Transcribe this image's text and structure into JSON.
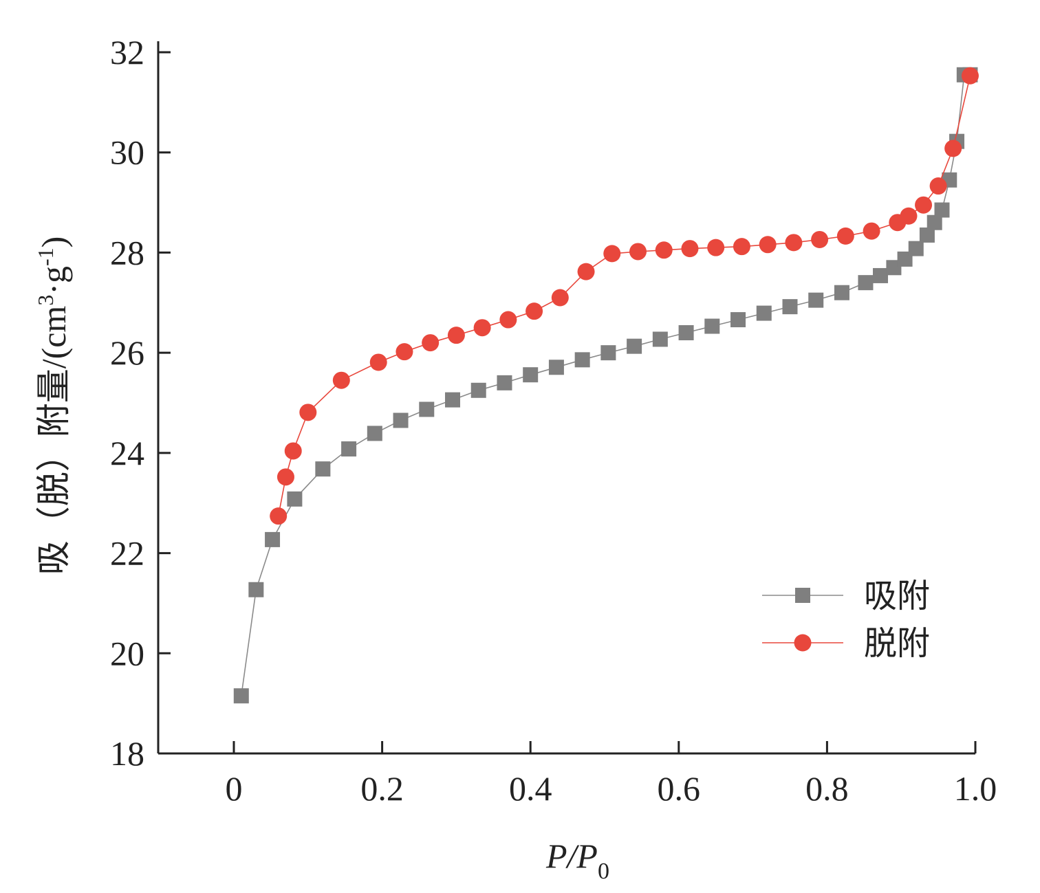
{
  "chart_data": {
    "type": "scatter",
    "title": "",
    "xlabel": {
      "main": "P/P",
      "sub": "0"
    },
    "ylabel": {
      "main": "吸（脱）附量/(cm",
      "sup1": "3",
      "mid": "·g",
      "sup2": "-1",
      "end": ")"
    },
    "xlim": [
      -0.1,
      1.0
    ],
    "ylim": [
      18,
      32
    ],
    "xticks": [
      0,
      0.2,
      0.4,
      0.6,
      0.8,
      1.0
    ],
    "xtick_labels": [
      "0",
      "0.2",
      "0.4",
      "0.6",
      "0.8",
      "1.0"
    ],
    "yticks": [
      18,
      20,
      22,
      24,
      26,
      28,
      30,
      32
    ],
    "ytick_labels": [
      "18",
      "20",
      "22",
      "24",
      "26",
      "28",
      "30",
      "32"
    ],
    "grid": false,
    "legend_position": "bottom-right",
    "series": [
      {
        "name": "吸附",
        "marker": "square",
        "color": "#7f7f7f",
        "x": [
          0.01,
          0.03,
          0.052,
          0.082,
          0.12,
          0.155,
          0.19,
          0.225,
          0.26,
          0.295,
          0.33,
          0.365,
          0.4,
          0.435,
          0.47,
          0.505,
          0.54,
          0.575,
          0.61,
          0.645,
          0.68,
          0.715,
          0.75,
          0.785,
          0.82,
          0.852,
          0.872,
          0.89,
          0.905,
          0.92,
          0.935,
          0.945,
          0.955,
          0.965,
          0.975,
          0.985,
          0.993
        ],
        "y": [
          19.15,
          21.27,
          22.27,
          23.08,
          23.68,
          24.08,
          24.39,
          24.65,
          24.87,
          25.06,
          25.25,
          25.4,
          25.56,
          25.71,
          25.86,
          26.0,
          26.13,
          26.27,
          26.4,
          26.53,
          26.66,
          26.79,
          26.92,
          27.05,
          27.2,
          27.4,
          27.54,
          27.7,
          27.87,
          28.08,
          28.35,
          28.6,
          28.85,
          29.45,
          30.22,
          31.55,
          31.55
        ]
      },
      {
        "name": "脱附",
        "marker": "circle",
        "color": "#e8473c",
        "x": [
          0.993,
          0.97,
          0.95,
          0.93,
          0.91,
          0.895,
          0.86,
          0.825,
          0.79,
          0.755,
          0.72,
          0.685,
          0.65,
          0.615,
          0.58,
          0.545,
          0.51,
          0.475,
          0.44,
          0.405,
          0.37,
          0.335,
          0.3,
          0.265,
          0.23,
          0.195,
          0.145,
          0.1,
          0.08,
          0.07,
          0.06
        ],
        "y": [
          31.53,
          30.08,
          29.33,
          28.95,
          28.73,
          28.6,
          28.43,
          28.33,
          28.26,
          28.2,
          28.16,
          28.12,
          28.1,
          28.08,
          28.05,
          28.02,
          27.98,
          27.62,
          27.1,
          26.83,
          26.66,
          26.5,
          26.35,
          26.2,
          26.02,
          25.81,
          25.45,
          24.81,
          24.04,
          23.52,
          22.74
        ]
      }
    ]
  }
}
